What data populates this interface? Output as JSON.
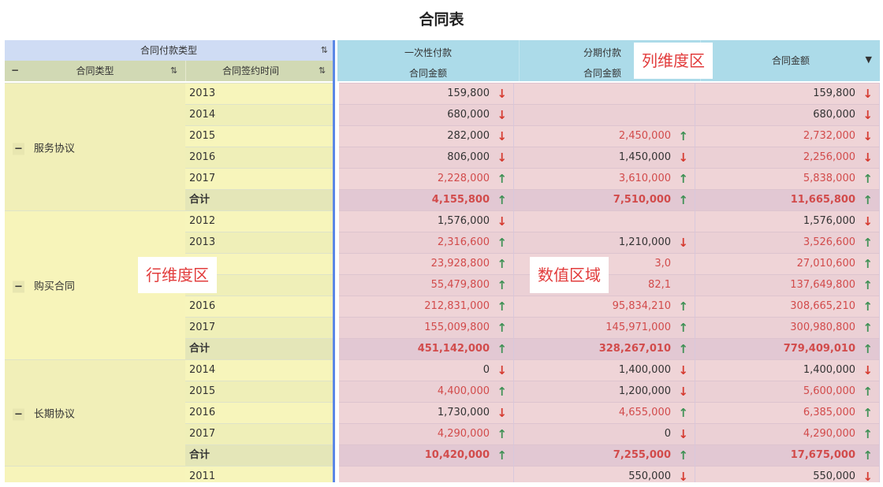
{
  "title": "合同表",
  "header": {
    "row_dim_group": "合同付款类型",
    "col1": "合同类型",
    "col2": "合同签约时间",
    "collapse": "−",
    "measure_groups": [
      "一次性付款",
      "分期付款"
    ],
    "measure_sub": "合同金额",
    "total_col": "合同金额",
    "dropdown": "▼"
  },
  "overlays": {
    "col_zone": "列维度区",
    "row_zone": "行维度区",
    "value_zone": "数值区域"
  },
  "groups": [
    {
      "name": "服务协议",
      "rows": [
        {
          "year": "2013",
          "v": [
            [
              "159,800",
              "down",
              0
            ],
            [
              "",
              "",
              0
            ],
            [
              "159,800",
              "down",
              0
            ]
          ]
        },
        {
          "year": "2014",
          "v": [
            [
              "680,000",
              "down",
              0
            ],
            [
              "",
              "",
              0
            ],
            [
              "680,000",
              "down",
              0
            ]
          ]
        },
        {
          "year": "2015",
          "v": [
            [
              "282,000",
              "down",
              0
            ],
            [
              "2,450,000",
              "up",
              1
            ],
            [
              "2,732,000",
              "down",
              1
            ]
          ]
        },
        {
          "year": "2016",
          "v": [
            [
              "806,000",
              "down",
              0
            ],
            [
              "1,450,000",
              "down",
              0
            ],
            [
              "2,256,000",
              "down",
              1
            ]
          ]
        },
        {
          "year": "2017",
          "v": [
            [
              "2,228,000",
              "up",
              1
            ],
            [
              "3,610,000",
              "up",
              1
            ],
            [
              "5,838,000",
              "up",
              1
            ]
          ]
        },
        {
          "year": "合计",
          "sub": true,
          "v": [
            [
              "4,155,800",
              "up",
              1
            ],
            [
              "7,510,000",
              "up",
              1
            ],
            [
              "11,665,800",
              "up",
              1
            ]
          ]
        }
      ]
    },
    {
      "name": "购买合同",
      "rows": [
        {
          "year": "2012",
          "v": [
            [
              "1,576,000",
              "down",
              0
            ],
            [
              "",
              "",
              0
            ],
            [
              "1,576,000",
              "down",
              0
            ]
          ]
        },
        {
          "year": "2013",
          "v": [
            [
              "2,316,600",
              "up",
              1
            ],
            [
              "1,210,000",
              "down",
              0
            ],
            [
              "3,526,600",
              "up",
              1
            ]
          ]
        },
        {
          "year": "",
          "v": [
            [
              "23,928,800",
              "up",
              1
            ],
            [
              "3,0",
              "",
              1
            ],
            [
              "27,010,600",
              "up",
              1
            ]
          ]
        },
        {
          "year": "",
          "v": [
            [
              "55,479,800",
              "up",
              1
            ],
            [
              "82,1",
              "",
              1
            ],
            [
              "137,649,800",
              "up",
              1
            ]
          ]
        },
        {
          "year": "2016",
          "v": [
            [
              "212,831,000",
              "up",
              1
            ],
            [
              "95,834,210",
              "up",
              1
            ],
            [
              "308,665,210",
              "up",
              1
            ]
          ]
        },
        {
          "year": "2017",
          "v": [
            [
              "155,009,800",
              "up",
              1
            ],
            [
              "145,971,000",
              "up",
              1
            ],
            [
              "300,980,800",
              "up",
              1
            ]
          ]
        },
        {
          "year": "合计",
          "sub": true,
          "v": [
            [
              "451,142,000",
              "up",
              1
            ],
            [
              "328,267,010",
              "up",
              1
            ],
            [
              "779,409,010",
              "up",
              1
            ]
          ]
        }
      ]
    },
    {
      "name": "长期协议",
      "rows": [
        {
          "year": "2014",
          "v": [
            [
              "0",
              "down",
              0
            ],
            [
              "1,400,000",
              "down",
              0
            ],
            [
              "1,400,000",
              "down",
              0
            ]
          ]
        },
        {
          "year": "2015",
          "v": [
            [
              "4,400,000",
              "up",
              1
            ],
            [
              "1,200,000",
              "down",
              0
            ],
            [
              "5,600,000",
              "up",
              1
            ]
          ]
        },
        {
          "year": "2016",
          "v": [
            [
              "1,730,000",
              "down",
              0
            ],
            [
              "4,655,000",
              "up",
              1
            ],
            [
              "6,385,000",
              "up",
              1
            ]
          ]
        },
        {
          "year": "2017",
          "v": [
            [
              "4,290,000",
              "up",
              1
            ],
            [
              "0",
              "down",
              0
            ],
            [
              "4,290,000",
              "up",
              1
            ]
          ]
        },
        {
          "year": "合计",
          "sub": true,
          "v": [
            [
              "10,420,000",
              "up",
              1
            ],
            [
              "7,255,000",
              "up",
              1
            ],
            [
              "17,675,000",
              "up",
              1
            ]
          ]
        }
      ]
    },
    {
      "name": "",
      "rows": [
        {
          "year": "2011",
          "v": [
            [
              "",
              "",
              0
            ],
            [
              "550,000",
              "down",
              0
            ],
            [
              "550,000",
              "down",
              0
            ]
          ]
        }
      ]
    }
  ]
}
